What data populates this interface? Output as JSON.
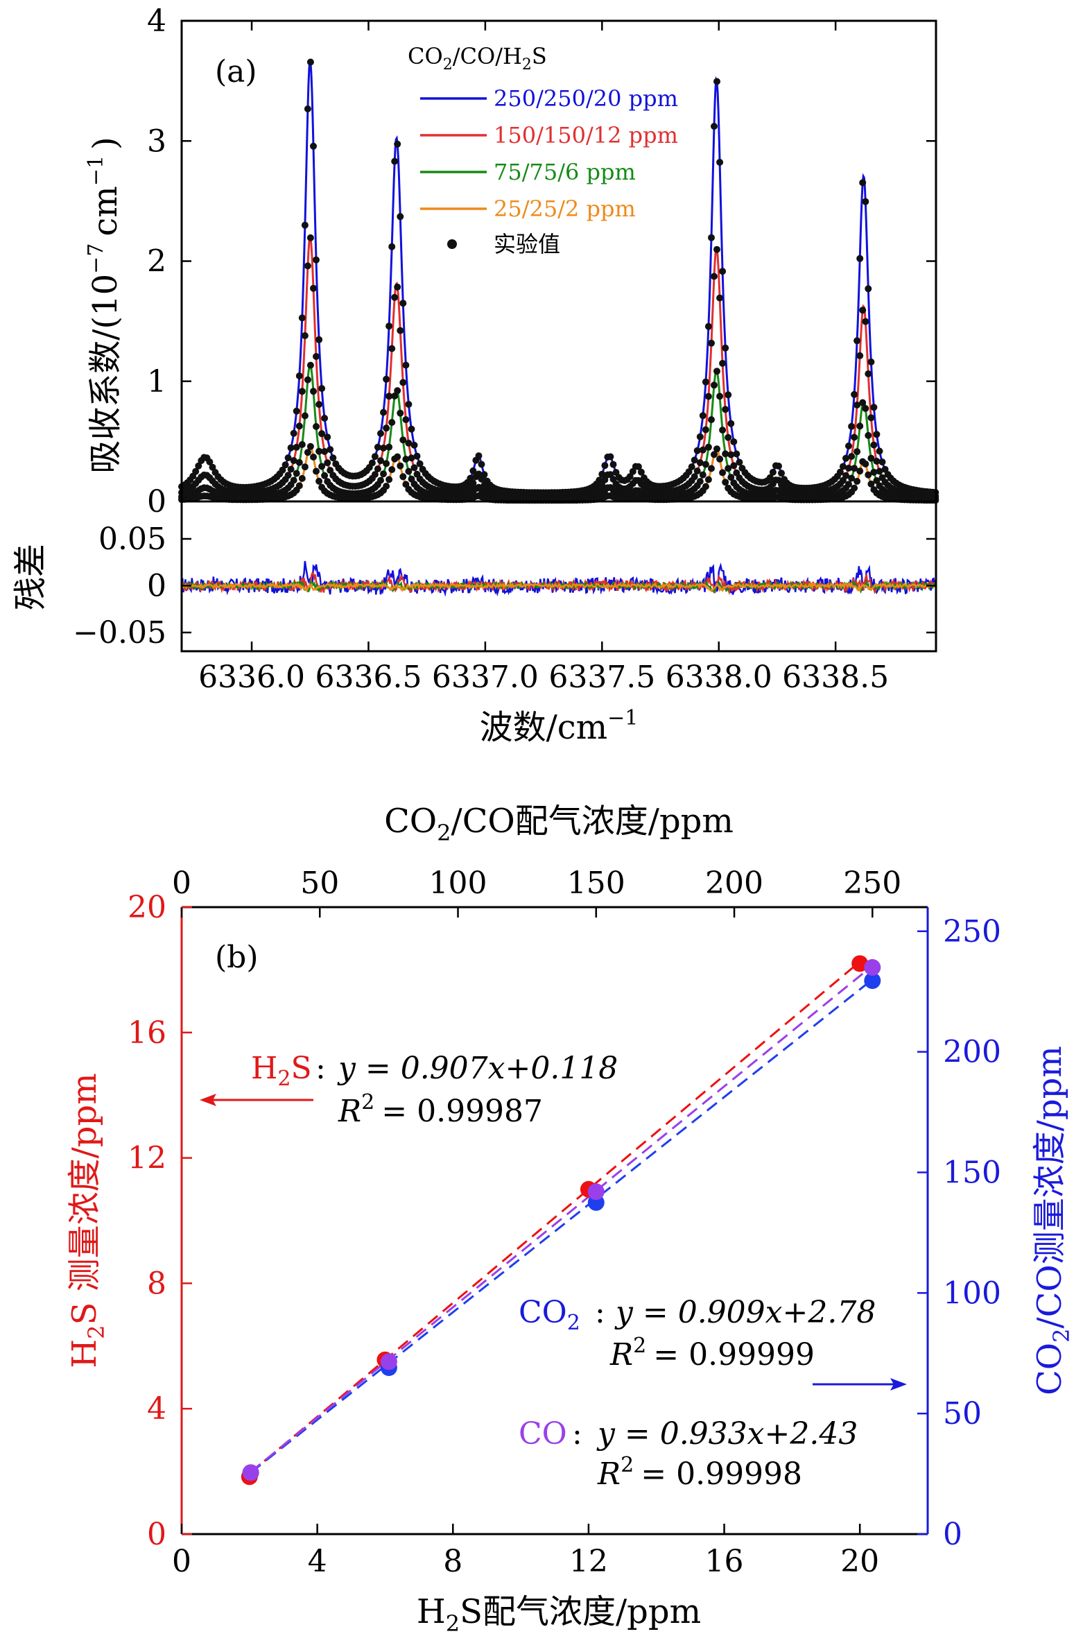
{
  "chart_data": [
    {
      "id": "a",
      "type": "line",
      "panel_label": "(a)",
      "xlabel": "波数/cm",
      "xlabel_sup": "−1",
      "ylabel": "吸收系数/(10",
      "ylabel_sup": "−7",
      "ylabel_unit": "cm",
      "ylabel_unit_sup": "−1",
      "ylabel_close": ")",
      "residual_ylabel": "残差",
      "xlim": [
        6335.7,
        6338.93
      ],
      "ylim": [
        0,
        4
      ],
      "residual_ylim": [
        -0.07,
        0.09
      ],
      "x_ticks": [
        6336.0,
        6336.5,
        6337.0,
        6337.5,
        6338.0,
        6338.5
      ],
      "x_tick_labels": [
        "6336.0",
        "6336.5",
        "6337.0",
        "6337.5",
        "6338.0",
        "6338.5"
      ],
      "y_ticks": [
        0,
        1,
        2,
        3,
        4
      ],
      "y_tick_labels": [
        "0",
        "1",
        "2",
        "3",
        "4"
      ],
      "residual_ticks": [
        -0.05,
        0,
        0.05
      ],
      "residual_tick_labels": [
        "−0.05",
        "0",
        "0.05"
      ],
      "legend_title": "CO₂/CO/H₂S",
      "legend_title_parts": [
        "CO",
        "2",
        "/CO/H",
        "2",
        "S"
      ],
      "legend_position": "top-center",
      "peaks": [
        {
          "center": 6335.8,
          "height": 0.3,
          "width": 0.05
        },
        {
          "center": 6336.25,
          "height": 3.6,
          "width": 0.028
        },
        {
          "center": 6336.62,
          "height": 2.95,
          "width": 0.03
        },
        {
          "center": 6336.97,
          "height": 0.3,
          "width": 0.025
        },
        {
          "center": 6337.53,
          "height": 0.3,
          "width": 0.03
        },
        {
          "center": 6337.65,
          "height": 0.2,
          "width": 0.03
        },
        {
          "center": 6337.99,
          "height": 3.45,
          "width": 0.028
        },
        {
          "center": 6338.25,
          "height": 0.2,
          "width": 0.025
        },
        {
          "center": 6338.62,
          "height": 2.65,
          "width": 0.027
        }
      ],
      "baseline": 0.05,
      "series": [
        {
          "name": "250/250/20 ppm",
          "color": "#1111dd",
          "scale": 1.0,
          "residual_amp": 0.018
        },
        {
          "name": "150/150/12 ppm",
          "color": "#e03030",
          "scale": 0.6,
          "residual_amp": 0.011
        },
        {
          "name": "75/75/6 ppm",
          "color": "#168a16",
          "scale": 0.31,
          "residual_amp": 0.006
        },
        {
          "name": "25/25/2 ppm",
          "color": "#ee8a1a",
          "scale": 0.125,
          "residual_amp": 0.004
        }
      ],
      "experimental_label": "实验值",
      "experimental_color": "#111111"
    },
    {
      "id": "b",
      "type": "scatter",
      "panel_label": "(b)",
      "xlabel": "H₂S配气浓度/ppm",
      "xlabel_parts": [
        "H",
        "2",
        "S配气浓度/ppm"
      ],
      "top_xlabel": "CO₂/CO配气浓度/ppm",
      "top_xlabel_parts": [
        "CO",
        "2",
        "/CO配气浓度/ppm"
      ],
      "ylabel_left": "H₂S 测量浓度/ppm",
      "ylabel_left_parts": [
        "H",
        "2",
        "S 测量浓度/ppm"
      ],
      "ylabel_right": "CO₂/CO测量浓度/ppm",
      "ylabel_right_parts": [
        "CO",
        "2",
        "/CO测量浓度/ppm"
      ],
      "xlim": [
        0,
        22
      ],
      "ylim_left": [
        0,
        20
      ],
      "top_xlim": [
        0,
        270
      ],
      "ylim_right": [
        0,
        260
      ],
      "x_ticks": [
        0,
        4,
        8,
        12,
        16,
        20
      ],
      "x_tick_labels": [
        "0",
        "4",
        "8",
        "12",
        "16",
        "20"
      ],
      "top_x_ticks": [
        0,
        50,
        100,
        150,
        200,
        250
      ],
      "top_x_tick_labels": [
        "0",
        "50",
        "100",
        "150",
        "200",
        "250"
      ],
      "y_left_ticks": [
        0,
        4,
        8,
        12,
        16,
        20
      ],
      "y_left_tick_labels": [
        "0",
        "4",
        "8",
        "12",
        "16",
        "20"
      ],
      "y_right_ticks": [
        0,
        50,
        100,
        150,
        200,
        250
      ],
      "y_right_tick_labels": [
        "0",
        "50",
        "100",
        "150",
        "200",
        "250"
      ],
      "left_axis_color": "#e01818",
      "right_axis_color": "#1a1adc",
      "series": [
        {
          "name": "H2S",
          "axis": "left",
          "color": "#ee1111",
          "points": [
            [
              2,
              1.83
            ],
            [
              6,
              5.56
            ],
            [
              12,
              11.0
            ],
            [
              20,
              18.2
            ]
          ],
          "fit": [
            2,
            20
          ],
          "fit_y": [
            1.93,
            18.26
          ]
        },
        {
          "name": "CO2",
          "axis": "right",
          "color": "#1f3fee",
          "points": [
            [
              25,
              25.5
            ],
            [
              75,
              69
            ],
            [
              150,
              137.5
            ],
            [
              250,
              229.5
            ]
          ],
          "fit": [
            25,
            250
          ],
          "fit_y": [
            25.5,
            230.0
          ]
        },
        {
          "name": "CO",
          "axis": "right",
          "color": "#9a40ea",
          "points": [
            [
              25,
              25.5
            ],
            [
              75,
              71.5
            ],
            [
              150,
              142
            ],
            [
              250,
              235
            ]
          ],
          "fit": [
            25,
            250
          ],
          "fit_y": [
            25.8,
            235.7
          ]
        }
      ],
      "annotations": {
        "h2s": {
          "name": "H₂S",
          "name_parts": [
            "H",
            "2",
            "S"
          ],
          "eq": "y = 0.907x+0.118",
          "r2_label": "R",
          "r2_sup": "2",
          "r2_value": "= 0.99987",
          "color": "#e01818"
        },
        "co2": {
          "name": "CO₂",
          "name_parts": [
            "CO",
            "2"
          ],
          "eq": "y = 0.909x+2.78",
          "r2_label": "R",
          "r2_sup": "2",
          "r2_value": "= 0.99999",
          "color": "#1a1adc"
        },
        "co": {
          "name": "CO",
          "eq": "y = 0.933x+2.43",
          "r2_label": "R",
          "r2_sup": "2",
          "r2_value": "= 0.99998",
          "color": "#9a40ea"
        }
      }
    }
  ]
}
